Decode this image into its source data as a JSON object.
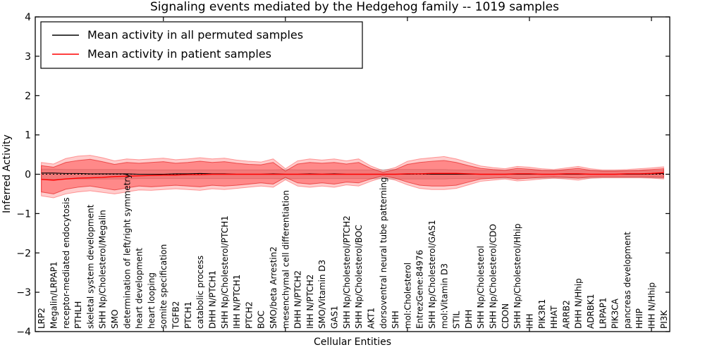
{
  "chart_data": {
    "type": "line",
    "title": "Signaling events mediated by the Hedgehog family -- 1019 samples",
    "xlabel": "Cellular Entities",
    "ylabel": "Inferred Activity",
    "ylim": [
      -4,
      4
    ],
    "yticks": [
      4,
      3,
      2,
      1,
      0,
      -1,
      -2,
      -3,
      -4
    ],
    "xtick_indices": [
      10,
      20,
      30,
      40,
      50
    ],
    "grid": false,
    "zero_line": true,
    "legend": {
      "position": "upper-left",
      "entries": [
        {
          "label": "Mean activity in all permuted samples",
          "color": "#000000"
        },
        {
          "label": "Mean activity in patient samples",
          "color": "#ff0000"
        }
      ]
    },
    "categories": [
      "LRP2",
      "Megalin/LRPAP1",
      "receptor-mediated endocytosis",
      "PTHLH",
      "skeletal system development",
      "SHH Np/Cholesterol/Megalin",
      "SMO",
      "determination of left/right symmetry",
      "heart development",
      "heart looping",
      "somite specification",
      "TGFB2",
      "PTCH1",
      "catabolic process",
      "DHH N/PTCH1",
      "SHH Np/Cholesterol/PTCH1",
      "IHH N/PTCH1",
      "PTCH2",
      "BOC",
      "SMO/beta Arrestin2",
      "mesenchymal cell differentiation",
      "DHH N/PTCH2",
      "IHH N/PTCH2",
      "SMO/Vitamin D3",
      "GAS1",
      "SHH Np/Cholesterol/PTCH2",
      "SHH Np/Cholesterol/BOC",
      "AKT1",
      "dorsoventral neural tube patterning",
      "SHH",
      "mol:Cholesterol",
      "EntrezGene:84976",
      "SHH Np/Cholesterol/GAS1",
      "mol:Vitamin D3",
      "STIL",
      "DHH",
      "SHH Np/Cholesterol",
      "SHH Np/Cholesterol/CDO",
      "CDON",
      "SHH Np/Cholesterol/Hhip",
      "IHH",
      "PIK3R1",
      "HHAT",
      "ARRB2",
      "DHH N/Hhip",
      "ADRBK1",
      "LRPAP1",
      "PIK3CA",
      "pancreas development",
      "HHIP",
      "IHH N/Hhip",
      "PI3K"
    ],
    "series": [
      {
        "name": "Mean activity in all permuted samples",
        "color": "#000000",
        "values": [
          0.03,
          0.03,
          0.02,
          0.02,
          0.01,
          0.01,
          0.01,
          0.01,
          0.0,
          0.0,
          0.0,
          0.01,
          0.01,
          0.02,
          0.01,
          0.01,
          0.0,
          0.0,
          0.0,
          0.01,
          0.0,
          0.0,
          0.01,
          0.0,
          0.01,
          0.0,
          0.0,
          0.0,
          0.0,
          0.0,
          0.0,
          0.01,
          0.0,
          0.0,
          0.0,
          0.0,
          0.0,
          0.0,
          0.0,
          0.0,
          0.0,
          0.0,
          0.0,
          0.0,
          0.0,
          0.0,
          0.0,
          0.0,
          0.0,
          0.0,
          0.01,
          0.02
        ]
      },
      {
        "name": "Mean activity in patient samples",
        "color": "#ff0000",
        "values": [
          -0.13,
          -0.15,
          -0.12,
          -0.1,
          -0.09,
          -0.08,
          -0.06,
          -0.05,
          -0.04,
          -0.03,
          -0.02,
          -0.02,
          -0.01,
          -0.01,
          0.0,
          0.0,
          0.0,
          0.0,
          0.0,
          0.0,
          0.0,
          0.0,
          0.0,
          0.0,
          0.0,
          0.0,
          0.0,
          0.0,
          0.0,
          0.0,
          0.01,
          0.01,
          0.02,
          0.02,
          0.02,
          0.01,
          0.0,
          0.0,
          0.0,
          0.01,
          0.01,
          0.0,
          0.0,
          0.01,
          0.01,
          0.0,
          0.0,
          0.0,
          0.01,
          0.01,
          0.02,
          0.04
        ]
      }
    ],
    "bands": [
      {
        "name": "permuted-samples-band",
        "fill": "rgba(0,0,0,0.10)",
        "edge": "rgba(0,0,0,0.16)",
        "lo": [
          -0.13,
          -0.13,
          -0.12,
          -0.12,
          -0.12,
          -0.12,
          -0.12,
          -0.12,
          -0.11,
          -0.11,
          -0.11,
          -0.11,
          -0.11,
          -0.11,
          -0.11,
          -0.11,
          -0.11,
          -0.11,
          -0.11,
          -0.11,
          -0.12,
          -0.11,
          -0.11,
          -0.11,
          -0.11,
          -0.11,
          -0.11,
          -0.11,
          -0.12,
          -0.12,
          -0.12,
          -0.12,
          -0.12,
          -0.12,
          -0.11,
          -0.11,
          -0.1,
          -0.1,
          -0.1,
          -0.1,
          -0.1,
          -0.1,
          -0.1,
          -0.1,
          -0.1,
          -0.1,
          -0.09,
          -0.09,
          -0.09,
          -0.09,
          -0.09,
          -0.1
        ],
        "hi": [
          0.13,
          0.13,
          0.12,
          0.12,
          0.12,
          0.12,
          0.12,
          0.12,
          0.11,
          0.11,
          0.11,
          0.11,
          0.11,
          0.11,
          0.11,
          0.11,
          0.11,
          0.11,
          0.11,
          0.11,
          0.12,
          0.11,
          0.11,
          0.11,
          0.11,
          0.11,
          0.11,
          0.11,
          0.12,
          0.12,
          0.12,
          0.12,
          0.12,
          0.12,
          0.11,
          0.11,
          0.1,
          0.1,
          0.1,
          0.1,
          0.1,
          0.1,
          0.1,
          0.1,
          0.1,
          0.1,
          0.09,
          0.09,
          0.09,
          0.09,
          0.09,
          0.1
        ]
      },
      {
        "name": "patient-band-outer",
        "fill": "rgba(255,0,0,0.20)",
        "edge": "rgba(255,0,0,0.35)",
        "lo": [
          -0.55,
          -0.6,
          -0.5,
          -0.45,
          -0.42,
          -0.46,
          -0.5,
          -0.45,
          -0.4,
          -0.41,
          -0.39,
          -0.37,
          -0.39,
          -0.41,
          -0.37,
          -0.39,
          -0.36,
          -0.33,
          -0.3,
          -0.33,
          -0.14,
          -0.3,
          -0.33,
          -0.3,
          -0.33,
          -0.27,
          -0.3,
          -0.18,
          -0.08,
          -0.15,
          -0.27,
          -0.36,
          -0.39,
          -0.39,
          -0.36,
          -0.27,
          -0.18,
          -0.15,
          -0.12,
          -0.17,
          -0.15,
          -0.12,
          -0.1,
          -0.12,
          -0.15,
          -0.1,
          -0.09,
          -0.09,
          -0.09,
          -0.09,
          -0.1,
          -0.12
        ],
        "hi": [
          0.3,
          0.26,
          0.4,
          0.46,
          0.48,
          0.42,
          0.34,
          0.39,
          0.37,
          0.39,
          0.41,
          0.37,
          0.39,
          0.42,
          0.39,
          0.41,
          0.36,
          0.33,
          0.31,
          0.39,
          0.14,
          0.34,
          0.39,
          0.36,
          0.39,
          0.34,
          0.39,
          0.21,
          0.09,
          0.17,
          0.33,
          0.39,
          0.42,
          0.45,
          0.39,
          0.3,
          0.21,
          0.17,
          0.14,
          0.2,
          0.18,
          0.14,
          0.12,
          0.16,
          0.2,
          0.14,
          0.11,
          0.11,
          0.12,
          0.14,
          0.16,
          0.19
        ]
      },
      {
        "name": "patient-band-inner",
        "fill": "rgba(255,0,0,0.33)",
        "edge": "rgba(220,0,0,0.55)",
        "lo": [
          -0.45,
          -0.5,
          -0.38,
          -0.33,
          -0.3,
          -0.35,
          -0.4,
          -0.35,
          -0.3,
          -0.32,
          -0.3,
          -0.28,
          -0.3,
          -0.32,
          -0.28,
          -0.3,
          -0.28,
          -0.25,
          -0.22,
          -0.25,
          -0.08,
          -0.22,
          -0.25,
          -0.22,
          -0.25,
          -0.2,
          -0.22,
          -0.12,
          -0.04,
          -0.1,
          -0.2,
          -0.28,
          -0.3,
          -0.3,
          -0.28,
          -0.2,
          -0.12,
          -0.1,
          -0.08,
          -0.12,
          -0.1,
          -0.08,
          -0.07,
          -0.08,
          -0.1,
          -0.07,
          -0.06,
          -0.06,
          -0.06,
          -0.06,
          -0.07,
          -0.08
        ],
        "hi": [
          0.22,
          0.18,
          0.3,
          0.35,
          0.38,
          0.32,
          0.25,
          0.3,
          0.28,
          0.3,
          0.32,
          0.28,
          0.3,
          0.33,
          0.3,
          0.32,
          0.28,
          0.25,
          0.24,
          0.3,
          0.08,
          0.26,
          0.3,
          0.28,
          0.3,
          0.26,
          0.3,
          0.15,
          0.05,
          0.12,
          0.25,
          0.3,
          0.33,
          0.35,
          0.3,
          0.22,
          0.15,
          0.12,
          0.1,
          0.15,
          0.13,
          0.1,
          0.09,
          0.12,
          0.15,
          0.1,
          0.08,
          0.08,
          0.09,
          0.1,
          0.12,
          0.14
        ]
      }
    ]
  },
  "colors": {
    "axes": "#000000",
    "background": "#ffffff",
    "permuted_line": "#000000",
    "patient_line": "#ff0000"
  }
}
